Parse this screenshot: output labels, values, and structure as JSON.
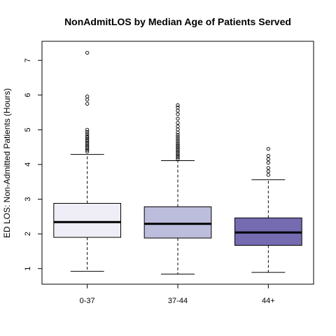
{
  "chart_data": {
    "type": "boxplot",
    "title": "NonAdmitLOS by Median Age of Patients Served",
    "xlabel": "",
    "ylabel": "ED LOS: Non-Admitted Patients (Hours)",
    "ylim": [
      0.55,
      7.55
    ],
    "yticks": [
      "1",
      "2",
      "3",
      "4",
      "5",
      "6",
      "7"
    ],
    "categories": [
      "0-37",
      "37-44",
      "44+"
    ],
    "boxes": [
      {
        "category": "0-37",
        "whisker_low": 0.92,
        "q1": 1.9,
        "median": 2.34,
        "q3": 2.88,
        "whisker_high": 4.29,
        "outliers": [
          7.22,
          5.96,
          5.87,
          5.75,
          5.0,
          4.94,
          4.88,
          4.82,
          4.77,
          4.72,
          4.67,
          4.62,
          4.57,
          4.52,
          4.47,
          4.42,
          4.37
        ]
      },
      {
        "category": "37-44",
        "whisker_low": 0.84,
        "q1": 1.88,
        "median": 2.29,
        "q3": 2.78,
        "whisker_high": 4.11,
        "outliers": [
          5.71,
          5.64,
          5.55,
          5.45,
          5.32,
          5.2,
          5.1,
          5.01,
          4.92,
          4.85,
          4.79,
          4.73,
          4.67,
          4.61,
          4.56,
          4.51,
          4.46,
          4.41,
          4.36,
          4.31,
          4.26,
          4.21,
          4.16
        ]
      },
      {
        "category": "44+",
        "whisker_low": 0.89,
        "q1": 1.67,
        "median": 2.04,
        "q3": 2.46,
        "whisker_high": 3.56,
        "outliers": [
          4.45,
          4.25,
          4.15,
          4.05,
          3.9,
          3.8,
          3.7
        ]
      }
    ],
    "colors": {
      "box_fills": [
        "#efedf5",
        "#bcbddc",
        "#756bb1"
      ],
      "stroke": "#000000",
      "background": "#ffffff"
    }
  }
}
